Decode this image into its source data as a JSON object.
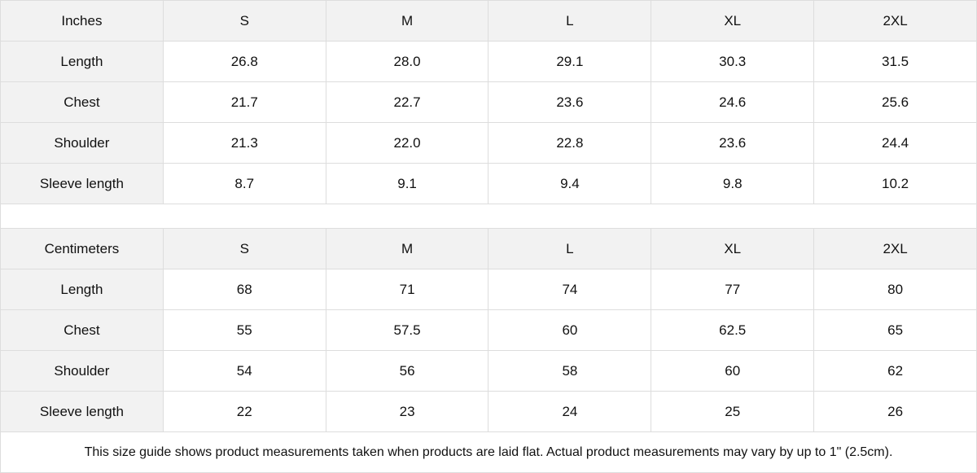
{
  "sizes": [
    "S",
    "M",
    "L",
    "XL",
    "2XL"
  ],
  "inches": {
    "unit": "Inches",
    "rows": [
      {
        "label": "Length",
        "values": [
          "26.8",
          "28.0",
          "29.1",
          "30.3",
          "31.5"
        ]
      },
      {
        "label": "Chest",
        "values": [
          "21.7",
          "22.7",
          "23.6",
          "24.6",
          "25.6"
        ]
      },
      {
        "label": "Shoulder",
        "values": [
          "21.3",
          "22.0",
          "22.8",
          "23.6",
          "24.4"
        ]
      },
      {
        "label": "Sleeve length",
        "values": [
          "8.7",
          "9.1",
          "9.4",
          "9.8",
          "10.2"
        ]
      }
    ]
  },
  "cm": {
    "unit": "Centimeters",
    "rows": [
      {
        "label": "Length",
        "values": [
          "68",
          "71",
          "74",
          "77",
          "80"
        ]
      },
      {
        "label": "Chest",
        "values": [
          "55",
          "57.5",
          "60",
          "62.5",
          "65"
        ]
      },
      {
        "label": "Shoulder",
        "values": [
          "54",
          "56",
          "58",
          "60",
          "62"
        ]
      },
      {
        "label": "Sleeve length",
        "values": [
          "22",
          "23",
          "24",
          "25",
          "26"
        ]
      }
    ]
  },
  "note": "This size guide shows product measurements taken when products are laid flat.  Actual product measurements may vary by up to 1\" (2.5cm)."
}
